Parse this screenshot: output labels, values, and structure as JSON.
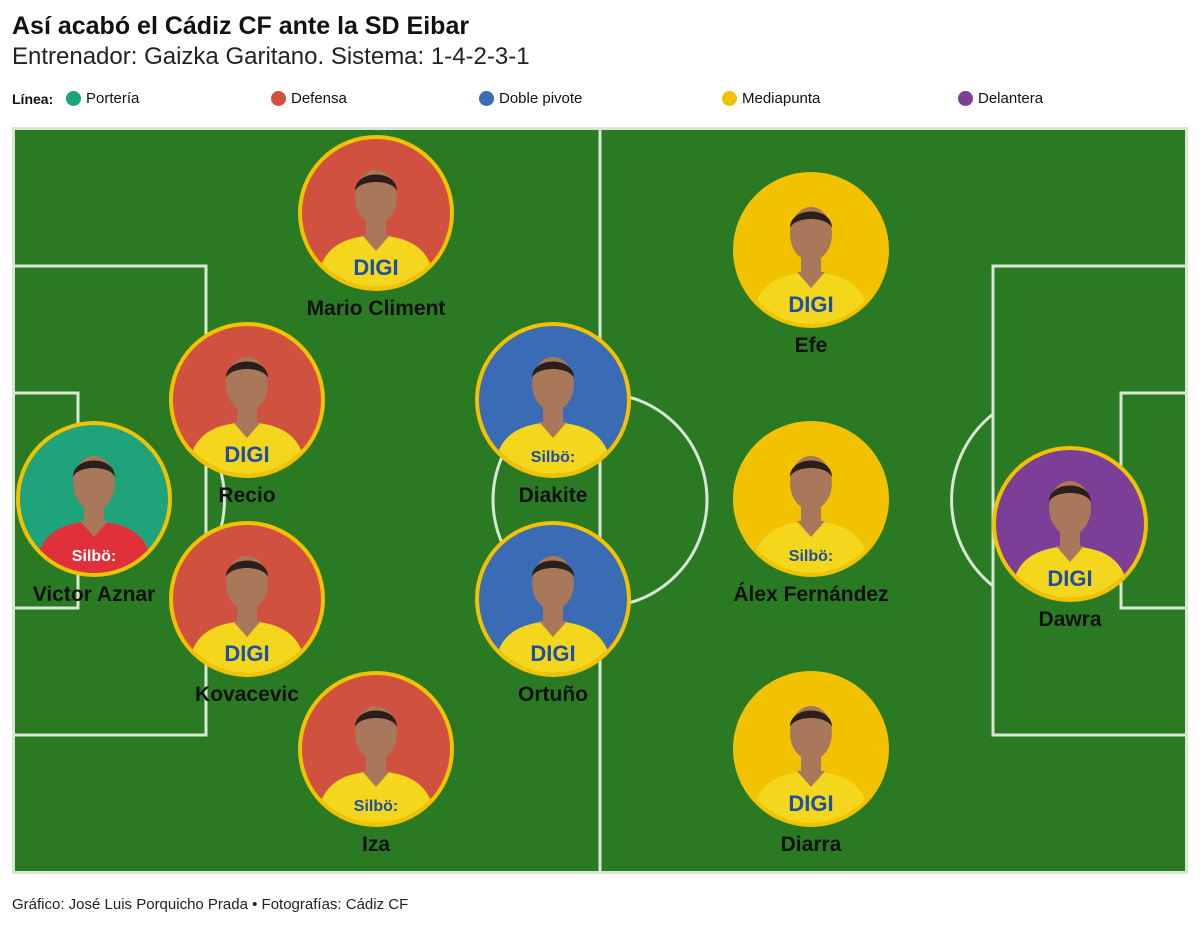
{
  "title": "Así acabó el Cádiz CF ante la SD Eibar",
  "subtitle": "Entrenador: Gaizka Garitano. Sistema: 1-4-2-3-1",
  "legend": {
    "label": "Línea:",
    "items": [
      {
        "name": "Portería",
        "color": "#1fa37a"
      },
      {
        "name": "Defensa",
        "color": "#d0513f"
      },
      {
        "name": "Doble pivote",
        "color": "#3a6bb5"
      },
      {
        "name": "Mediapunta",
        "color": "#f2c200"
      },
      {
        "name": "Delantera",
        "color": "#7c3f98"
      }
    ]
  },
  "pitch": {
    "grass_color": "#2a7a24",
    "line_color": "#d8e6d3"
  },
  "players": [
    {
      "name": "Victor Aznar",
      "line": "Portería",
      "bg": "#1fa37a",
      "kit": "#e0303a",
      "sponsor": "Silbö:"
    },
    {
      "name": "Mario Climent",
      "line": "Defensa",
      "bg": "#d0513f",
      "kit": "#f4d61c",
      "sponsor": "DIGI"
    },
    {
      "name": "Recio",
      "line": "Defensa",
      "bg": "#d0513f",
      "kit": "#f4d61c",
      "sponsor": "DIGI"
    },
    {
      "name": "Kovacevic",
      "line": "Defensa",
      "bg": "#d0513f",
      "kit": "#f4d61c",
      "sponsor": "DIGI"
    },
    {
      "name": "Iza",
      "line": "Defensa",
      "bg": "#d0513f",
      "kit": "#f4d61c",
      "sponsor": "Silbö:"
    },
    {
      "name": "Diakite",
      "line": "Doble pivote",
      "bg": "#3a6bb5",
      "kit": "#f4d61c",
      "sponsor": "Silbö:"
    },
    {
      "name": "Ortuño",
      "line": "Doble pivote",
      "bg": "#3a6bb5",
      "kit": "#f4d61c",
      "sponsor": "DIGI"
    },
    {
      "name": "Efe",
      "line": "Mediapunta",
      "bg": "#f2c200",
      "kit": "#f4d61c",
      "sponsor": "DIGI"
    },
    {
      "name": "Álex Fernández",
      "line": "Mediapunta",
      "bg": "#f2c200",
      "kit": "#f4d61c",
      "sponsor": "Silbö:"
    },
    {
      "name": "Diarra",
      "line": "Mediapunta",
      "bg": "#f2c200",
      "kit": "#f4d61c",
      "sponsor": "DIGI"
    },
    {
      "name": "Dawra",
      "line": "Delantera",
      "bg": "#7c3f98",
      "kit": "#f4d61c",
      "sponsor": "DIGI"
    }
  ],
  "credit": "Gráfico: José Luis Porquicho Prada • Fotografías: Cádiz CF"
}
